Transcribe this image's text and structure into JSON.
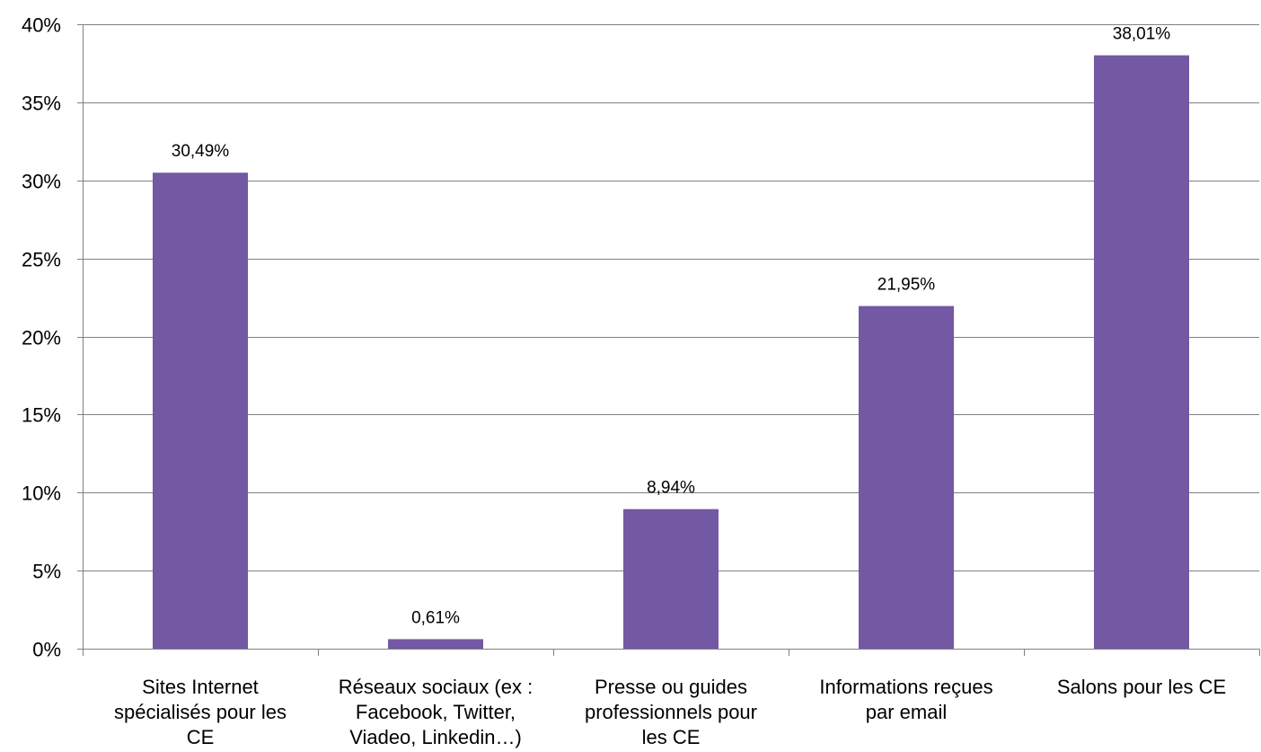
{
  "chart_data": {
    "type": "bar",
    "categories": [
      [
        "Sites Internet",
        "spécialisés pour les",
        "CE"
      ],
      [
        "Réseaux sociaux (ex :",
        "Facebook, Twitter,",
        "Viadeo, Linkedin…)"
      ],
      [
        "Presse ou guides",
        "professionnels pour",
        "les CE"
      ],
      [
        "Informations reçues",
        "par email"
      ],
      [
        "Salons pour les CE"
      ]
    ],
    "values": [
      30.49,
      0.61,
      8.94,
      21.95,
      38.01
    ],
    "data_labels": [
      "30,49%",
      "0,61%",
      "8,94%",
      "21,95%",
      "38,01%"
    ],
    "y_ticks": [
      0,
      5,
      10,
      15,
      20,
      25,
      30,
      35,
      40
    ],
    "y_tick_labels": [
      "0%",
      "5%",
      "10%",
      "15%",
      "20%",
      "25%",
      "30%",
      "35%",
      "40%"
    ],
    "ylim": [
      0,
      40
    ],
    "title": "",
    "xlabel": "",
    "ylabel": "",
    "grid": true,
    "legend": "none",
    "colors": {
      "bar": "#7358a3",
      "gridline": "#808080",
      "axis": "#808080",
      "text": "#000000"
    }
  }
}
